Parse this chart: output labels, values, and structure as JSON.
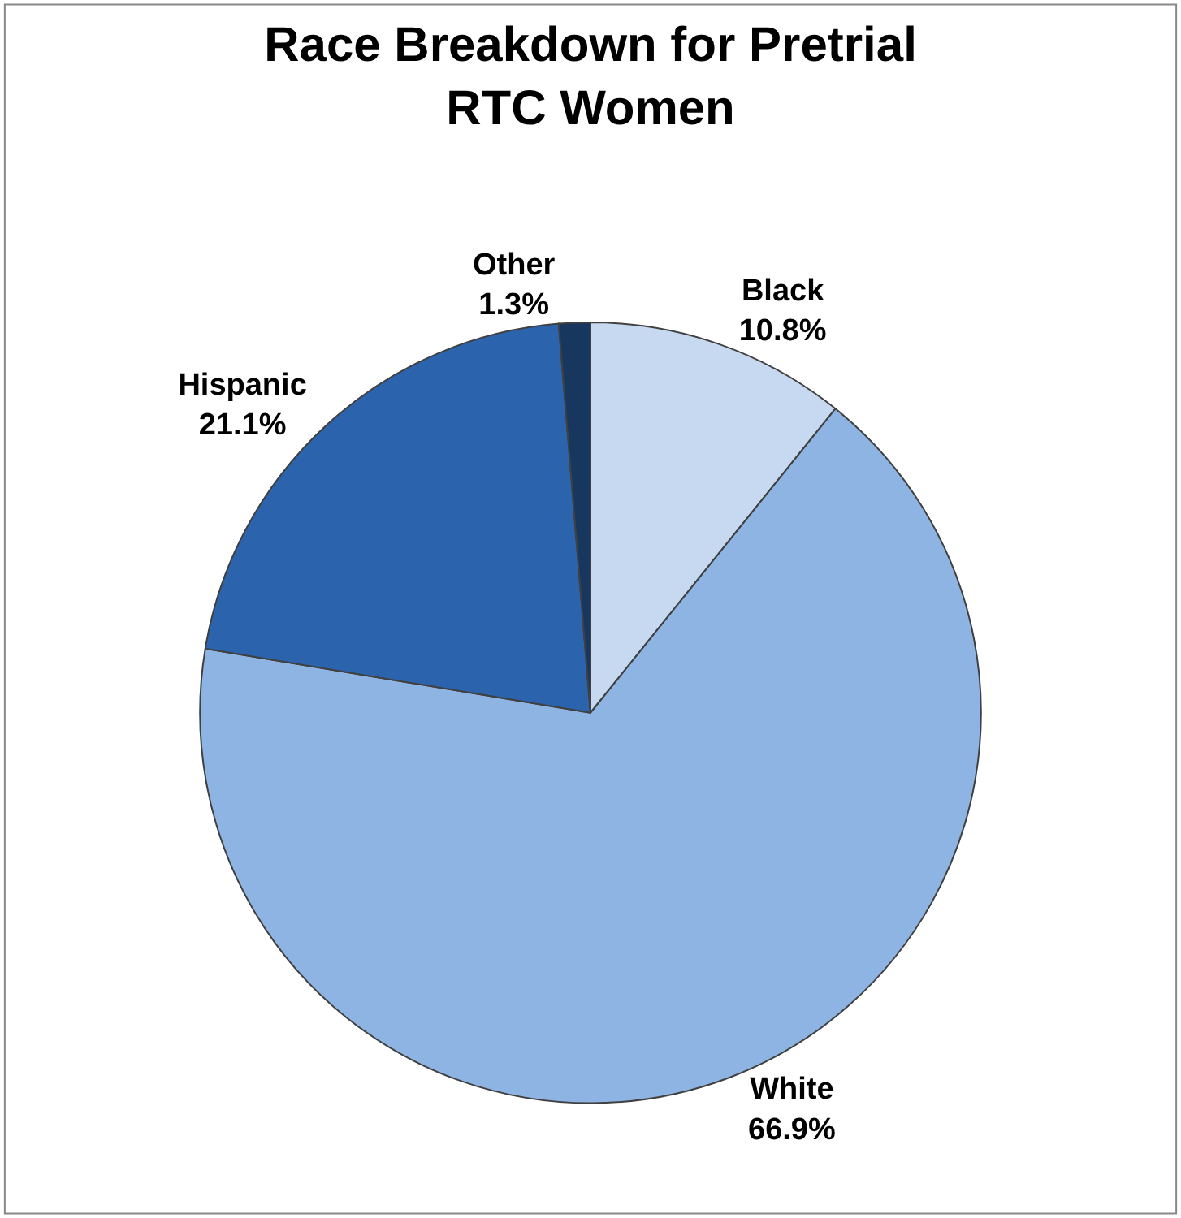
{
  "chart_data": {
    "type": "pie",
    "title": "Race Breakdown for Pretrial RTC Women",
    "categories": [
      "Black",
      "White",
      "Hispanic",
      "Other"
    ],
    "values": [
      10.8,
      66.9,
      21.1,
      1.3
    ],
    "value_labels": [
      "10.8%",
      "66.9%",
      "21.1%",
      "1.3%"
    ],
    "colors": [
      "#c6d9f1",
      "#8eb4e3",
      "#2b64ad",
      "#17375e"
    ],
    "legend": false
  }
}
